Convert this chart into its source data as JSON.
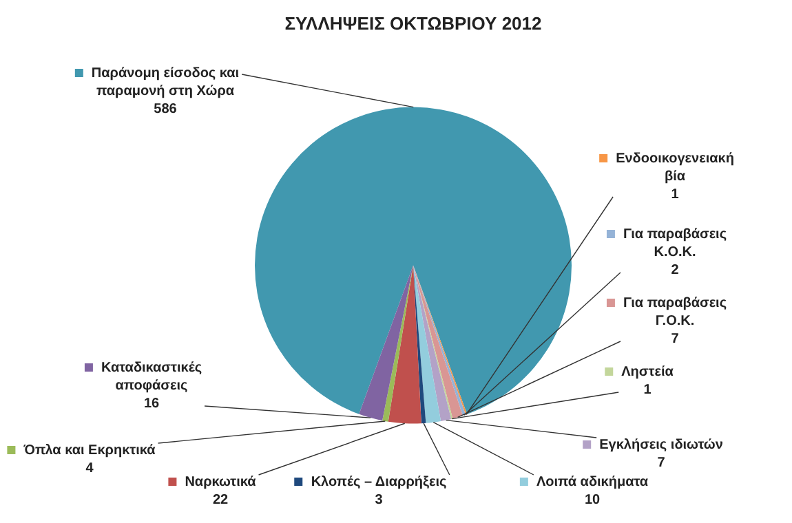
{
  "chart_data": {
    "type": "pie",
    "title": "ΣΥΛΛΗΨΕΙΣ ΟΚΤΩΒΡΙΟΥ 2012",
    "categories": [
      "Παράνομη είσοδος και παραμονή στη Χώρα",
      "Ενδοοικογενειακή βία",
      "Για παραβάσεις Κ.Ο.Κ.",
      "Για παραβάσεις Γ.Ο.Κ.",
      "Ληστεία",
      "Εγκλήσεις ιδιωτών",
      "Λοιπά αδικήματα",
      "Κλοπές – Διαρρήξεις",
      "Ναρκωτικά",
      "Όπλα και Εκρηκτικά",
      "Καταδικαστικές αποφάσεις"
    ],
    "values": [
      586,
      1,
      2,
      7,
      1,
      7,
      10,
      3,
      22,
      4,
      16
    ],
    "colors": [
      "#4198af",
      "#f79646",
      "#95b3d7",
      "#d99694",
      "#c3d69b",
      "#b3a2c7",
      "#93cddd",
      "#1f497d",
      "#c0504d",
      "#9bbb59",
      "#8064a2"
    ],
    "data_labels": true,
    "legend": true
  }
}
